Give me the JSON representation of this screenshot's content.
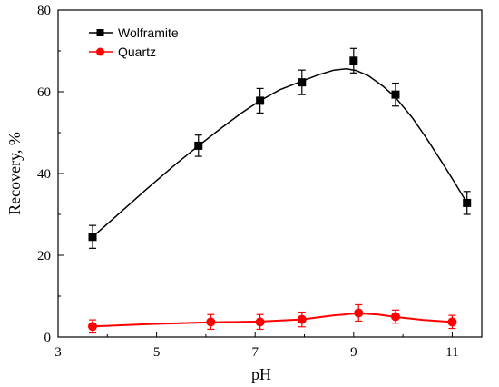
{
  "chart_data": {
    "type": "line",
    "xlabel": "pH",
    "ylabel": "Recovery, %",
    "xlim": [
      3,
      11.6
    ],
    "ylim": [
      0,
      80
    ],
    "x_ticks": [
      3,
      5,
      7,
      9,
      11
    ],
    "y_ticks": [
      0,
      20,
      40,
      60,
      80
    ],
    "x_tick_labels": [
      "3",
      "5",
      "7",
      "9",
      "11"
    ],
    "y_tick_labels": [
      "0",
      "20",
      "40",
      "60",
      "80"
    ],
    "grid": false,
    "legend_position": "top-left",
    "series": [
      {
        "name": "Wolframite",
        "color": "#000000",
        "marker": "square",
        "x": [
          3.7,
          5.85,
          7.1,
          7.95,
          9.0,
          9.85,
          11.3
        ],
        "y": [
          24.5,
          46.8,
          57.8,
          62.3,
          67.6,
          59.3,
          32.8
        ],
        "err": [
          2.8,
          2.6,
          3.0,
          3.0,
          3.0,
          2.8,
          2.8
        ],
        "curve": [
          [
            3.7,
            24.5
          ],
          [
            4.2,
            29.8
          ],
          [
            4.8,
            36.2
          ],
          [
            5.4,
            42.4
          ],
          [
            5.85,
            46.8
          ],
          [
            6.3,
            51.0
          ],
          [
            6.7,
            54.6
          ],
          [
            7.1,
            57.8
          ],
          [
            7.5,
            60.5
          ],
          [
            7.95,
            62.6
          ],
          [
            8.3,
            64.2
          ],
          [
            8.6,
            65.3
          ],
          [
            8.85,
            65.6
          ],
          [
            9.05,
            65.2
          ],
          [
            9.3,
            63.9
          ],
          [
            9.6,
            61.3
          ],
          [
            9.85,
            58.6
          ],
          [
            10.2,
            53.5
          ],
          [
            10.5,
            48.2
          ],
          [
            10.8,
            42.6
          ],
          [
            11.05,
            37.8
          ],
          [
            11.3,
            32.8
          ]
        ]
      },
      {
        "name": "Quartz",
        "color": "#ff0000",
        "marker": "circle",
        "x": [
          3.7,
          6.1,
          7.1,
          7.95,
          9.1,
          9.85,
          11.0
        ],
        "y": [
          2.6,
          3.7,
          3.7,
          4.3,
          5.9,
          5.0,
          3.7
        ],
        "err": [
          1.6,
          1.8,
          1.8,
          1.8,
          2.0,
          1.6,
          1.6
        ],
        "curve": [
          [
            3.7,
            2.6
          ],
          [
            4.9,
            3.2
          ],
          [
            6.1,
            3.6
          ],
          [
            7.1,
            3.8
          ],
          [
            7.95,
            4.3
          ],
          [
            8.6,
            5.3
          ],
          [
            9.1,
            5.8
          ],
          [
            9.5,
            5.5
          ],
          [
            9.85,
            4.9
          ],
          [
            10.4,
            4.2
          ],
          [
            11.0,
            3.7
          ]
        ]
      }
    ]
  }
}
